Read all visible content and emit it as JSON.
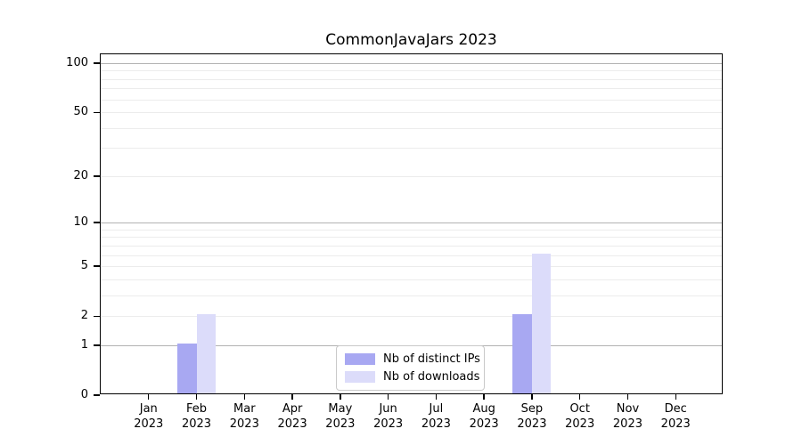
{
  "title": "CommonJavaJars 2023",
  "chart_data": {
    "type": "bar",
    "title": "CommonJavaJars 2023",
    "categories": [
      "Jan 2023",
      "Feb 2023",
      "Mar 2023",
      "Apr 2023",
      "May 2023",
      "Jun 2023",
      "Jul 2023",
      "Aug 2023",
      "Sep 2023",
      "Oct 2023",
      "Nov 2023",
      "Dec 2023"
    ],
    "months": [
      "Jan",
      "Feb",
      "Mar",
      "Apr",
      "May",
      "Jun",
      "Jul",
      "Aug",
      "Sep",
      "Oct",
      "Nov",
      "Dec"
    ],
    "year": "2023",
    "series": [
      {
        "name": "Nb of distinct IPs",
        "color": "#a8a8f2",
        "values": [
          0,
          1,
          0,
          0,
          0,
          0,
          0,
          0,
          2,
          0,
          0,
          0
        ]
      },
      {
        "name": "Nb of downloads",
        "color": "#dcdcfa",
        "values": [
          0,
          2,
          0,
          0,
          0,
          0,
          0,
          0,
          6,
          0,
          0,
          0
        ]
      }
    ],
    "y_axis": {
      "scale": "log1p",
      "ticks": [
        0,
        1,
        2,
        5,
        10,
        20,
        50,
        100
      ],
      "major_gridlines": [
        1,
        10,
        100
      ],
      "minor_gridlines": [
        2,
        3,
        4,
        5,
        6,
        7,
        8,
        9,
        20,
        30,
        40,
        50,
        60,
        70,
        80,
        90
      ],
      "ylim": [
        0,
        113
      ]
    },
    "xlabel": "",
    "ylabel": "",
    "grid": true,
    "legend": {
      "position": "lower center",
      "entries": [
        "Nb of distinct IPs",
        "Nb of downloads"
      ]
    }
  },
  "colors": {
    "distinct_ips": "#a8a8f2",
    "downloads": "#dcdcfa",
    "grid_major": "#b2b2b2",
    "grid_minor": "#ececec",
    "spine": "#000000",
    "legend_border": "#c9c9c9",
    "background": "#ffffff"
  }
}
